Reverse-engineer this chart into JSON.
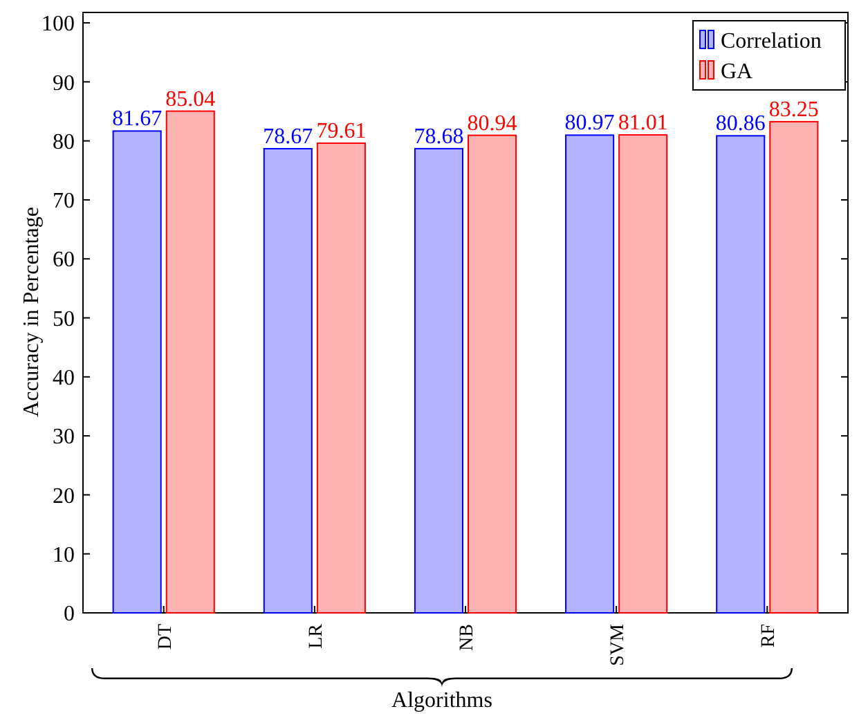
{
  "chart_data": {
    "type": "bar",
    "xlabel": "Algorithms",
    "ylabel": "Accuracy in Percentage",
    "categories": [
      "DT",
      "LR",
      "NB",
      "SVM",
      "RF"
    ],
    "series": [
      {
        "name": "Correlation",
        "color": "#b3b3ff",
        "values": [
          81.67,
          78.67,
          78.68,
          80.97,
          80.86
        ]
      },
      {
        "name": "GA",
        "color": "#ffb3b3",
        "values": [
          85.04,
          79.61,
          80.94,
          81.01,
          83.25
        ]
      }
    ],
    "ylim": [
      0,
      102
    ],
    "yticks": [
      0,
      10,
      20,
      30,
      40,
      50,
      60,
      70,
      80,
      90,
      100
    ],
    "data_labels": true,
    "legend": "top right",
    "grid": false
  }
}
